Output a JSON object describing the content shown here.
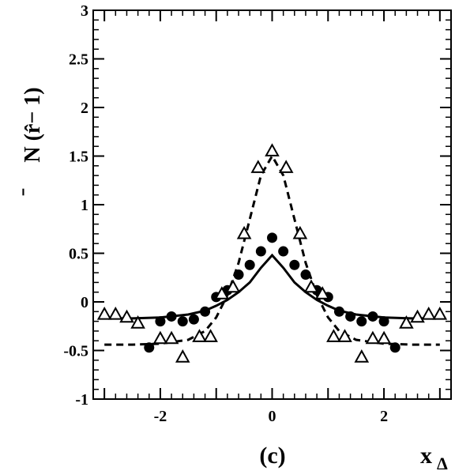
{
  "chart_data": {
    "type": "scatter",
    "ylabel_main": "N (r̂− 1)",
    "ylabel_bar": "̄",
    "xlabel_main": "x",
    "xlabel_sub": "Δ",
    "panel_label": "(c)",
    "xlim": [
      -3.2,
      3.2
    ],
    "ylim": [
      -1,
      3
    ],
    "x_ticks": [
      -2,
      0,
      2
    ],
    "x_tick_labels": [
      "-2",
      "0",
      "2"
    ],
    "y_ticks": [
      -1,
      -0.5,
      0,
      0.5,
      1,
      1.5,
      2,
      2.5,
      3
    ],
    "y_tick_labels": [
      "-1",
      "-0.5",
      "0",
      "0.5",
      "1",
      "1.5",
      "2",
      "2.5",
      "3"
    ],
    "grid": false,
    "series": [
      {
        "marker": "filled-circle",
        "points": [
          [
            -2.2,
            -0.47
          ],
          [
            -2.0,
            -0.2
          ],
          [
            -1.8,
            -0.15
          ],
          [
            -1.6,
            -0.2
          ],
          [
            -1.4,
            -0.18
          ],
          [
            -1.2,
            -0.1
          ],
          [
            -1.0,
            0.05
          ],
          [
            -0.8,
            0.12
          ],
          [
            -0.6,
            0.28
          ],
          [
            -0.4,
            0.38
          ],
          [
            -0.2,
            0.52
          ],
          [
            0.0,
            0.66
          ],
          [
            0.2,
            0.52
          ],
          [
            0.4,
            0.38
          ],
          [
            0.6,
            0.28
          ],
          [
            0.8,
            0.12
          ],
          [
            1.0,
            0.05
          ],
          [
            1.2,
            -0.1
          ],
          [
            1.4,
            -0.15
          ],
          [
            1.6,
            -0.2
          ],
          [
            1.8,
            -0.15
          ],
          [
            2.0,
            -0.2
          ],
          [
            2.2,
            -0.47
          ]
        ]
      },
      {
        "marker": "open-triangle",
        "points": [
          [
            -3.0,
            -0.13
          ],
          [
            -2.8,
            -0.13
          ],
          [
            -2.6,
            -0.16
          ],
          [
            -2.4,
            -0.22
          ],
          [
            -2.0,
            -0.38
          ],
          [
            -1.8,
            -0.38
          ],
          [
            -1.6,
            -0.57
          ],
          [
            -1.3,
            -0.36
          ],
          [
            -1.1,
            -0.36
          ],
          [
            -0.9,
            0.08
          ],
          [
            -0.7,
            0.15
          ],
          [
            -0.5,
            0.7
          ],
          [
            -0.25,
            1.38
          ],
          [
            0.0,
            1.55
          ],
          [
            0.25,
            1.38
          ],
          [
            0.5,
            0.7
          ],
          [
            0.7,
            0.15
          ],
          [
            0.9,
            0.08
          ],
          [
            1.1,
            -0.36
          ],
          [
            1.3,
            -0.36
          ],
          [
            1.6,
            -0.57
          ],
          [
            1.8,
            -0.38
          ],
          [
            2.0,
            -0.38
          ],
          [
            2.4,
            -0.22
          ],
          [
            2.6,
            -0.16
          ],
          [
            2.8,
            -0.13
          ],
          [
            3.0,
            -0.13
          ]
        ]
      },
      {
        "line": "solid",
        "x": [
          -3.0,
          -2.5,
          -2.0,
          -1.5,
          -1.2,
          -1.0,
          -0.8,
          -0.6,
          -0.4,
          -0.2,
          0.0,
          0.2,
          0.4,
          0.6,
          0.8,
          1.0,
          1.2,
          1.5,
          2.0,
          2.5,
          3.0
        ],
        "y": [
          -0.17,
          -0.17,
          -0.16,
          -0.13,
          -0.09,
          -0.04,
          0.02,
          0.1,
          0.2,
          0.35,
          0.48,
          0.35,
          0.2,
          0.1,
          0.02,
          -0.04,
          -0.09,
          -0.13,
          -0.16,
          -0.17,
          -0.17
        ]
      },
      {
        "line": "dashed",
        "x": [
          -3.0,
          -2.5,
          -2.0,
          -1.5,
          -1.2,
          -1.0,
          -0.8,
          -0.6,
          -0.4,
          -0.2,
          0.0,
          0.2,
          0.4,
          0.6,
          0.8,
          1.0,
          1.2,
          1.5,
          2.0,
          2.5,
          3.0
        ],
        "y": [
          -0.44,
          -0.44,
          -0.43,
          -0.39,
          -0.3,
          -0.16,
          0.07,
          0.4,
          0.85,
          1.3,
          1.5,
          1.3,
          0.85,
          0.4,
          0.07,
          -0.16,
          -0.3,
          -0.39,
          -0.43,
          -0.44,
          -0.44
        ]
      }
    ]
  }
}
